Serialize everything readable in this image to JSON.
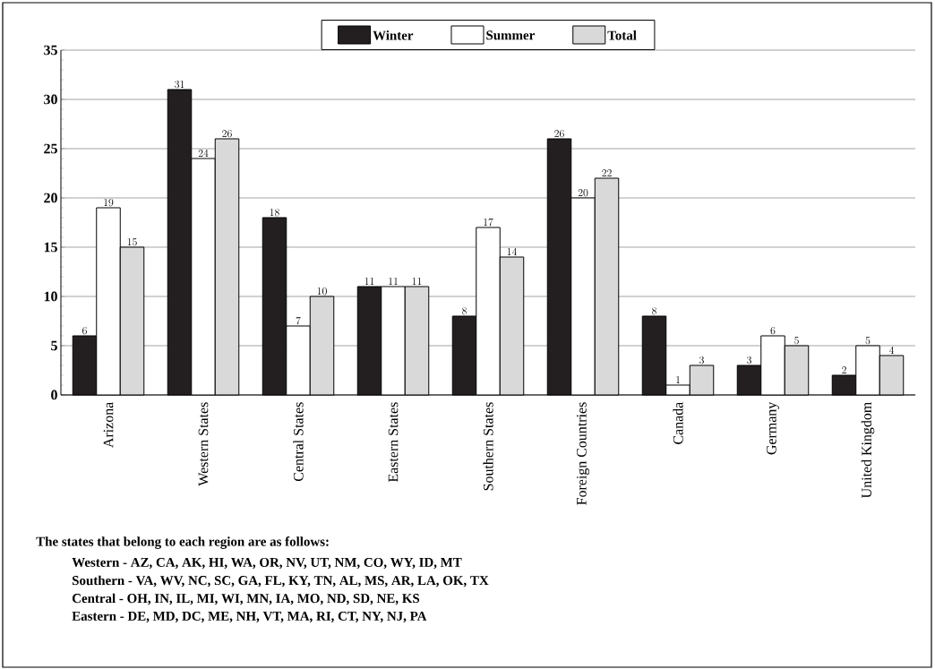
{
  "chart_data": {
    "type": "bar",
    "categories": [
      "Arizona",
      "Western States",
      "Central States",
      "Eastern States",
      "Southern States",
      "Foreign Countries",
      "Canada",
      "Germany",
      "United Kingdom"
    ],
    "series": [
      {
        "name": "Winter",
        "color": "#231f20",
        "values": [
          6,
          31,
          18,
          11,
          8,
          26,
          8,
          3,
          2
        ]
      },
      {
        "name": "Summer",
        "color": "#ffffff",
        "values": [
          19,
          24,
          7,
          11,
          17,
          20,
          1,
          6,
          5
        ]
      },
      {
        "name": "Total",
        "color": "#d9d9d9",
        "values": [
          15,
          26,
          10,
          11,
          14,
          22,
          3,
          5,
          4
        ]
      }
    ],
    "ylim": [
      0,
      35
    ],
    "yticks": [
      0,
      5,
      10,
      15,
      20,
      25,
      30,
      35
    ],
    "grid": "y",
    "legend": "top",
    "data_labels": true,
    "annotations": [
      "The states that belong to each region are as follows:",
      "Western - AZ, CA, AK, HI, WA, OR, NV, UT, NM, CO, WY, ID, MT",
      "Southern - VA, WV, NC, SC, GA, FL, KY, TN, AL, MS, AR, LA, OK, TX",
      "Central - OH, IN, IL, MI, WI, MN, IA, MO, ND, SD, NE, KS",
      "Eastern - DE, MD, DC, ME, NH, VT, MA, RI, CT, NY, NJ, PA"
    ]
  }
}
